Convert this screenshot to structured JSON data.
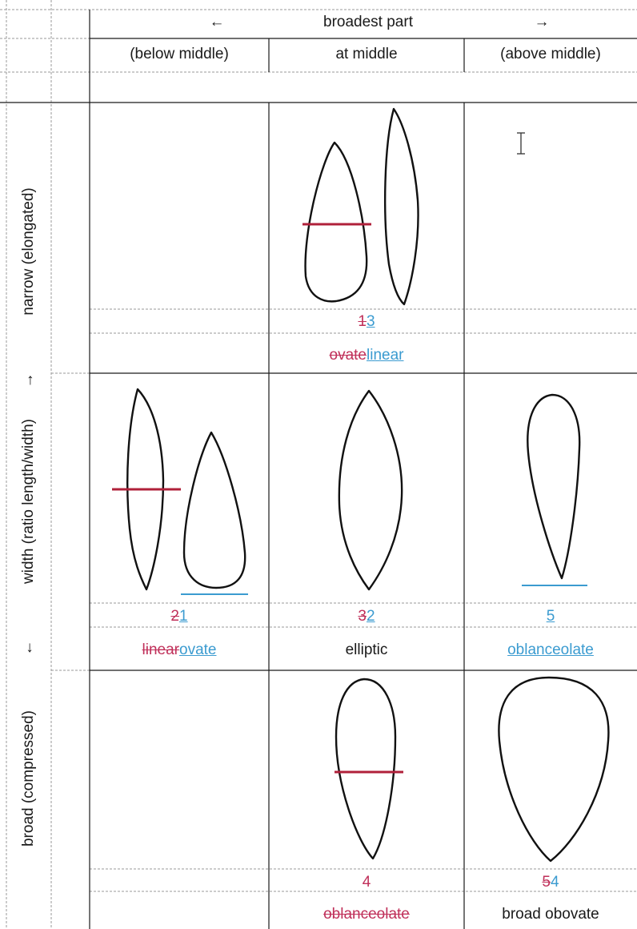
{
  "header": {
    "arrow_left": "←",
    "broadest_part": "broadest part",
    "arrow_right": "→",
    "col_below": "(below middle)",
    "col_middle": "at middle",
    "col_above": "(above middle)"
  },
  "side": {
    "narrow": "narrow (elongated)",
    "arrow_up": "→",
    "width": "width (ratio length/width)",
    "arrow_down": "↓",
    "broad": "broad (compressed)"
  },
  "cells": {
    "r1_mid_num_del": "1",
    "r1_mid_num_ins": "3",
    "r1_mid_name_del": "ovate",
    "r1_mid_name_ins": "linear",
    "r2_left_num_del": "2",
    "r2_left_num_ins": "1",
    "r2_left_name_del": "linear",
    "r2_left_name_ins": "ovate",
    "r2_mid_num_del": "3",
    "r2_mid_num_ins": "2",
    "r2_mid_name": "elliptic",
    "r2_right_num_ins": "5",
    "r2_right_name_ins": "oblanceolate",
    "r3_mid_num": "4",
    "r3_mid_name_del": "oblanceolate",
    "r3_right_num_del": "5",
    "r3_right_num_ins": "4",
    "r3_right_name": "broad obovate"
  },
  "colors": {
    "deletion": "#c0305a",
    "insertion": "#3b9bd0",
    "strike_bar": "#b0203a"
  },
  "icons": {
    "cursor": "text-cursor-icon"
  }
}
